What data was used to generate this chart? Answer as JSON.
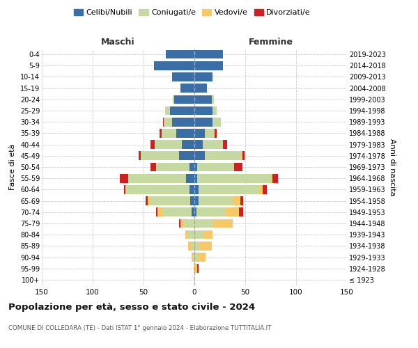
{
  "age_groups": [
    "100+",
    "95-99",
    "90-94",
    "85-89",
    "80-84",
    "75-79",
    "70-74",
    "65-69",
    "60-64",
    "55-59",
    "50-54",
    "45-49",
    "40-44",
    "35-39",
    "30-34",
    "25-29",
    "20-24",
    "15-19",
    "10-14",
    "5-9",
    "0-4"
  ],
  "birth_years": [
    "≤ 1923",
    "1924-1928",
    "1929-1933",
    "1934-1938",
    "1939-1943",
    "1944-1948",
    "1949-1953",
    "1954-1958",
    "1959-1963",
    "1964-1968",
    "1969-1973",
    "1974-1978",
    "1979-1983",
    "1984-1988",
    "1989-1993",
    "1994-1998",
    "1999-2003",
    "2004-2008",
    "2009-2013",
    "2014-2018",
    "2019-2023"
  ],
  "maschi": {
    "celibi": [
      0,
      0,
      0,
      0,
      0,
      0,
      3,
      4,
      5,
      8,
      5,
      15,
      12,
      18,
      22,
      24,
      20,
      14,
      22,
      40,
      28
    ],
    "coniugati": [
      0,
      0,
      1,
      2,
      6,
      10,
      28,
      40,
      63,
      57,
      33,
      38,
      27,
      14,
      8,
      5,
      1,
      0,
      0,
      0,
      0
    ],
    "vedovi": [
      0,
      1,
      2,
      4,
      3,
      4,
      5,
      2,
      0,
      0,
      0,
      0,
      0,
      0,
      0,
      0,
      0,
      0,
      0,
      0,
      0
    ],
    "divorziati": [
      0,
      0,
      0,
      0,
      0,
      1,
      2,
      2,
      1,
      8,
      5,
      2,
      4,
      2,
      1,
      0,
      0,
      0,
      0,
      0,
      0
    ]
  },
  "femmine": {
    "nubili": [
      0,
      0,
      0,
      0,
      0,
      0,
      2,
      4,
      4,
      3,
      3,
      10,
      8,
      10,
      18,
      18,
      17,
      12,
      18,
      28,
      28
    ],
    "coniugate": [
      0,
      1,
      3,
      5,
      8,
      18,
      28,
      33,
      60,
      72,
      36,
      36,
      20,
      10,
      8,
      4,
      2,
      0,
      0,
      0,
      0
    ],
    "vedove": [
      1,
      2,
      8,
      12,
      10,
      20,
      14,
      8,
      3,
      2,
      0,
      1,
      0,
      0,
      0,
      0,
      0,
      0,
      0,
      0,
      0
    ],
    "divorziate": [
      0,
      1,
      0,
      0,
      0,
      0,
      4,
      3,
      4,
      5,
      8,
      2,
      4,
      2,
      0,
      0,
      0,
      0,
      0,
      0,
      0
    ]
  },
  "colors": {
    "celibi": "#3a6ea5",
    "coniugati": "#c5d9a0",
    "vedovi": "#f5c96a",
    "divorziati": "#cc2222"
  },
  "title": "Popolazione per età, sesso e stato civile - 2024",
  "subtitle": "COMUNE DI COLLEDARA (TE) - Dati ISTAT 1° gennaio 2024 - Elaborazione TUTTITALIA.IT",
  "xlabel_left": "Maschi",
  "xlabel_right": "Femmine",
  "ylabel_left": "Fasce di età",
  "ylabel_right": "Anni di nascita",
  "xlim": 150,
  "legend_labels": [
    "Celibi/Nubili",
    "Coniugati/e",
    "Vedovi/e",
    "Divorziati/e"
  ],
  "background_color": "#ffffff",
  "grid_color": "#cccccc"
}
